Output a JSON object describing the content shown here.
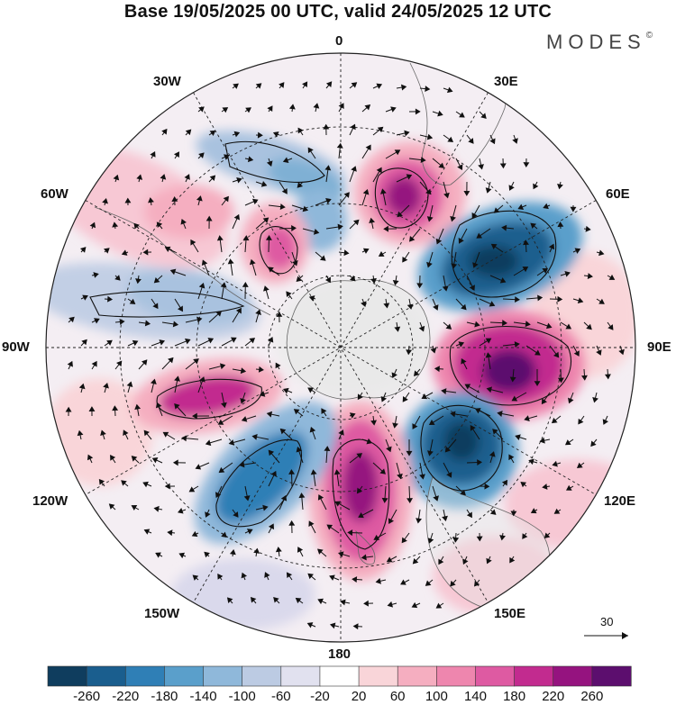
{
  "title": "Base 19/05/2025 00 UTC, valid 24/05/2025 12 UTC",
  "brand": "MODES",
  "brand_mark": "©",
  "longitude_labels": {
    "n0": "0",
    "e30": "30E",
    "e60": "60E",
    "e90": "90E",
    "e120": "120E",
    "e150": "150E",
    "s180": "180",
    "w150": "150W",
    "w120": "120W",
    "w90": "90W",
    "w60": "60W",
    "w30": "30W"
  },
  "colorbar": {
    "labels": [
      "-260",
      "-220",
      "-180",
      "-140",
      "-100",
      "-60",
      "-20",
      "20",
      "60",
      "100",
      "140",
      "180",
      "220",
      "260"
    ],
    "colors": [
      "#0f3d5e",
      "#1a5e8e",
      "#2f7fb6",
      "#5a9fcb",
      "#8fb8da",
      "#bccbe3",
      "#e1e1ef",
      "#ffffff",
      "#f9d5d9",
      "#f5aec0",
      "#ee86ae",
      "#de5aa2",
      "#c22b8f",
      "#95137f",
      "#5c0e6e"
    ]
  },
  "reference_vector": {
    "label": "30"
  },
  "anomaly_centers": [
    {
      "name": "pos-30e",
      "value": 200
    },
    {
      "name": "neg-60e",
      "value": -240
    },
    {
      "name": "pos-100e",
      "value": 250
    },
    {
      "name": "neg-130e",
      "value": -250
    },
    {
      "name": "pos-175e",
      "value": 220
    },
    {
      "name": "neg-145w",
      "value": -200
    },
    {
      "name": "pos-105w",
      "value": 200
    },
    {
      "name": "neg-75w",
      "value": -100
    },
    {
      "name": "pos-40w",
      "value": 140
    },
    {
      "name": "neg-10w",
      "value": -120
    }
  ]
}
